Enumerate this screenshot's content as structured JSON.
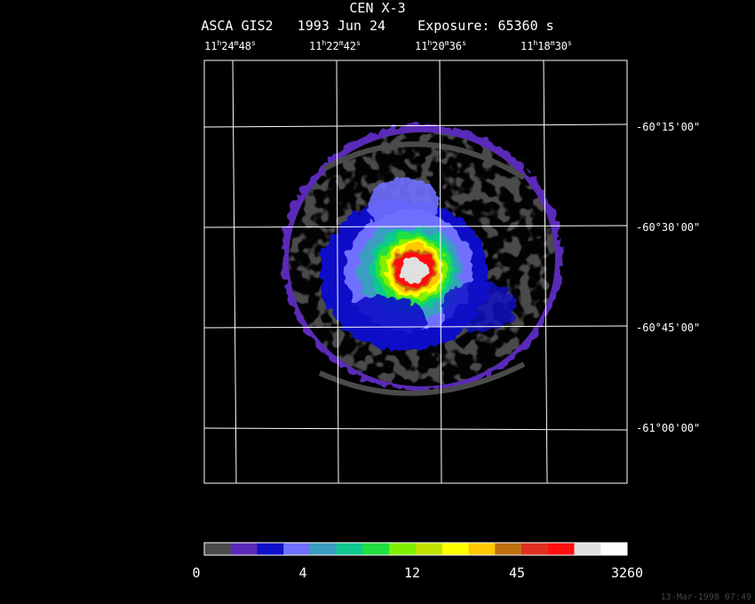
{
  "header": {
    "title": "CEN X-3",
    "subtitle": "ASCA GIS2   1993 Jun 24    Exposure: 65360 s"
  },
  "ra_ticks": [
    {
      "h": "11",
      "m": "24",
      "s": "48"
    },
    {
      "h": "11",
      "m": "22",
      "s": "42"
    },
    {
      "h": "11",
      "m": "20",
      "s": "36"
    },
    {
      "h": "11",
      "m": "18",
      "s": "30"
    }
  ],
  "dec_ticks": [
    "-60°15'00\"",
    "-60°30'00\"",
    "-60°45'00\"",
    "-61°00'00\""
  ],
  "colorbar": {
    "colors": [
      "#4a4a4a",
      "#5a2ab8",
      "#1010c8",
      "#7070ff",
      "#3a9ec0",
      "#10c890",
      "#20e040",
      "#80f000",
      "#c0e000",
      "#ffff00",
      "#ffc800",
      "#c07010",
      "#e03020",
      "#ff1010",
      "#e0e0e0",
      "#ffffff"
    ],
    "labels": [
      "0",
      "4",
      "12",
      "45",
      "3260"
    ]
  },
  "footer": {
    "timestamp": "13-Mar-1998 07:49"
  }
}
